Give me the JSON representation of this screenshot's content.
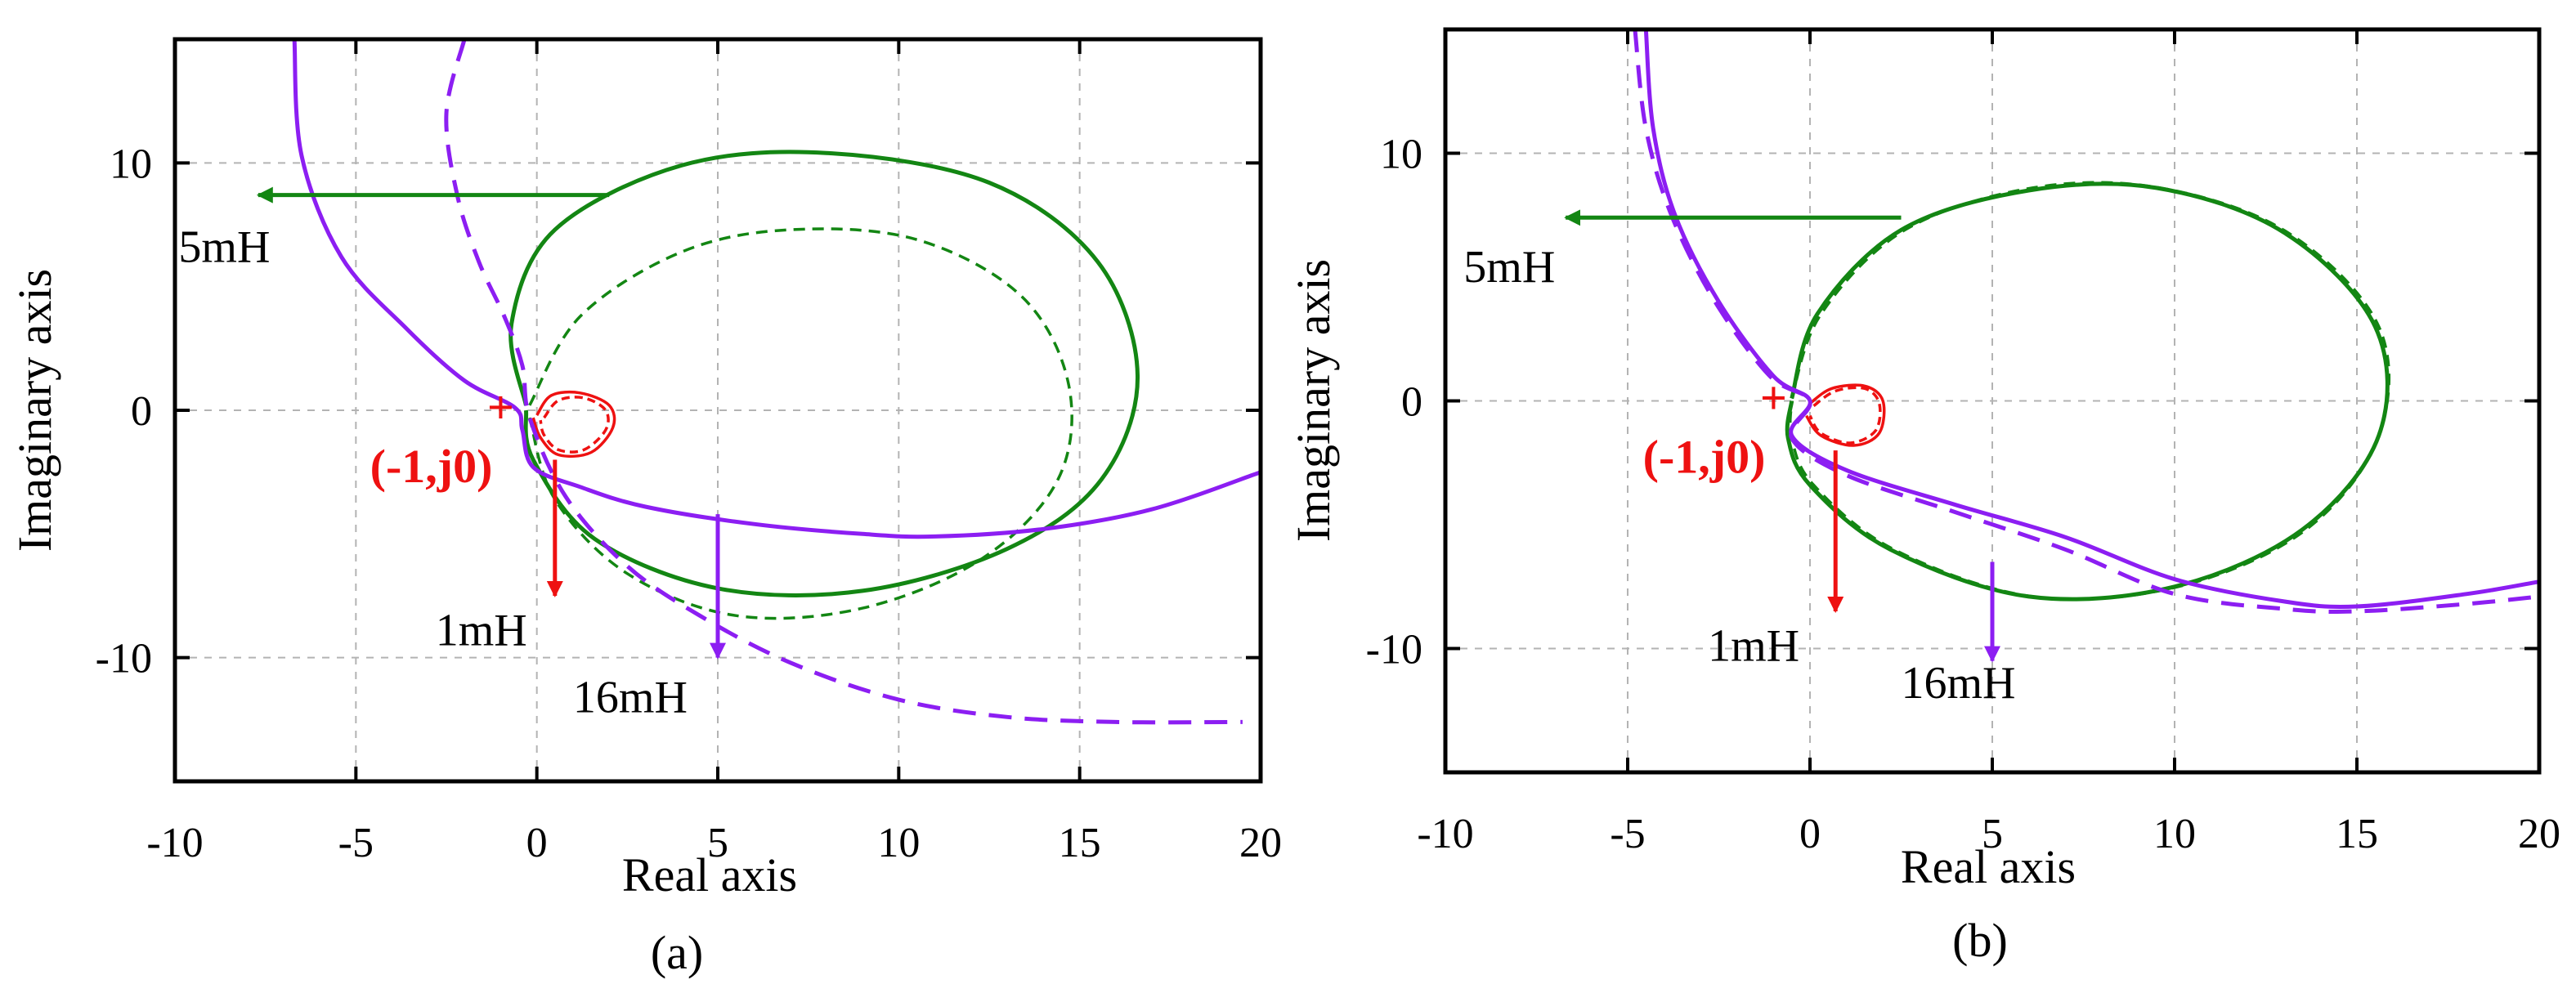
{
  "colors": {
    "green": "#138613",
    "purple": "#8c1ef2",
    "red": "#ee1111",
    "grid": "#b3b3b3",
    "axis": "#000000"
  },
  "chart_data": [
    {
      "type": "line",
      "title": "",
      "caption": "(a)",
      "xlabel": "Real axis",
      "ylabel": "Imaginary axis",
      "xlim": [
        -10,
        20
      ],
      "ylim": [
        -15,
        15
      ],
      "xticks": [
        -10,
        -5,
        0,
        5,
        10,
        15,
        20
      ],
      "yticks": [
        -10,
        0,
        10
      ],
      "xtick_labels": [
        "-10",
        "-5",
        "0",
        "5",
        "10",
        "15",
        "20"
      ],
      "ytick_labels": [
        "-10",
        "0",
        "10"
      ],
      "grid": true,
      "critical_point": {
        "x": -1,
        "y": 0,
        "marker": "+",
        "label": "(-1,j0)"
      },
      "series": [
        {
          "name": "1mH solid",
          "color": "red",
          "style": "solid",
          "points": [
            [
              0,
              -0.2
            ],
            [
              0.4,
              0.6
            ],
            [
              1.2,
              0.7
            ],
            [
              2,
              0.2
            ],
            [
              2.1,
              -0.7
            ],
            [
              1.5,
              -1.7
            ],
            [
              0.6,
              -1.8
            ],
            [
              0.1,
              -1.1
            ],
            [
              -0.1,
              -0.3
            ]
          ]
        },
        {
          "name": "1mH dashed",
          "color": "red",
          "style": "dashed",
          "points": [
            [
              0.2,
              -0.3
            ],
            [
              0.6,
              0.4
            ],
            [
              1.3,
              0.5
            ],
            [
              1.9,
              0
            ],
            [
              1.9,
              -0.8
            ],
            [
              1.3,
              -1.6
            ],
            [
              0.6,
              -1.6
            ],
            [
              0.2,
              -1
            ],
            [
              0.1,
              -0.4
            ]
          ]
        },
        {
          "name": "5mH solid",
          "color": "green",
          "style": "solid",
          "points": [
            [
              -0.3,
              0.2
            ],
            [
              -0.7,
              3.5
            ],
            [
              0.5,
              7.3
            ],
            [
              4,
              9.9
            ],
            [
              8,
              10.4
            ],
            [
              12.5,
              9.2
            ],
            [
              15.5,
              6
            ],
            [
              16.6,
              1.4
            ],
            [
              15.6,
              -2.8
            ],
            [
              13,
              -5.6
            ],
            [
              9,
              -7.3
            ],
            [
              5,
              -7.2
            ],
            [
              1.6,
              -5.2
            ],
            [
              -0.1,
              -2
            ],
            [
              -0.3,
              0
            ]
          ]
        },
        {
          "name": "5mH dashed",
          "color": "green",
          "style": "dashed",
          "points": [
            [
              -0.2,
              0.2
            ],
            [
              1.2,
              3.8
            ],
            [
              4,
              6.4
            ],
            [
              7,
              7.3
            ],
            [
              10.5,
              6.9
            ],
            [
              13.4,
              4.6
            ],
            [
              14.7,
              1
            ],
            [
              14.4,
              -2.8
            ],
            [
              12.3,
              -6
            ],
            [
              9,
              -8
            ],
            [
              5.5,
              -8.3
            ],
            [
              2.5,
              -6.6
            ],
            [
              0.5,
              -3.6
            ],
            [
              -0.2,
              -0.3
            ]
          ]
        },
        {
          "name": "16mH solid",
          "color": "purple",
          "style": "solid",
          "points": [
            [
              -6.7,
              15
            ],
            [
              -6.5,
              10.3
            ],
            [
              -5.4,
              6.2
            ],
            [
              -3.6,
              3.3
            ],
            [
              -2,
              1.2
            ],
            [
              -0.6,
              0.1
            ],
            [
              -0.4,
              -0.8
            ],
            [
              -0.1,
              -2.3
            ],
            [
              1.2,
              -3.1
            ],
            [
              3,
              -3.9
            ],
            [
              6,
              -4.6
            ],
            [
              9,
              -5
            ],
            [
              11,
              -5.1
            ],
            [
              14,
              -4.8
            ],
            [
              17,
              -4
            ],
            [
              20,
              -2.5
            ]
          ]
        },
        {
          "name": "16mH dashed",
          "color": "purple",
          "style": "dashed",
          "points": [
            [
              -2,
              15
            ],
            [
              -2.5,
              12
            ],
            [
              -2.2,
              8.7
            ],
            [
              -1.6,
              6
            ],
            [
              -0.9,
              3.8
            ],
            [
              -0.4,
              1.8
            ],
            [
              -0.2,
              -0.3
            ],
            [
              0.8,
              -3.5
            ],
            [
              2.5,
              -6.3
            ],
            [
              4.5,
              -8.3
            ],
            [
              7,
              -10.2
            ],
            [
              10,
              -11.7
            ],
            [
              13,
              -12.4
            ],
            [
              16,
              -12.6
            ],
            [
              19.5,
              -12.6
            ]
          ]
        }
      ],
      "annotations": [
        {
          "text": "5mH",
          "color": "green",
          "arrow": {
            "from": [
              2,
              8.7
            ],
            "to": [
              -7.7,
              8.7
            ]
          },
          "label_at": [
            -9.9,
            6
          ]
        },
        {
          "text": "1mH",
          "color": "red",
          "arrow": {
            "from": [
              0.5,
              -2
            ],
            "to": [
              0.5,
              -7.5
            ]
          },
          "label_at": [
            -2.8,
            -9.5
          ]
        },
        {
          "text": "16mH",
          "color": "purple",
          "arrow": {
            "from": [
              5,
              -4.2
            ],
            "to": [
              5,
              -10
            ]
          },
          "label_at": [
            1,
            -12.2
          ]
        }
      ]
    },
    {
      "type": "line",
      "title": "",
      "caption": "(b)",
      "xlabel": "Real axis",
      "ylabel": "Imaginary axis",
      "xlim": [
        -10,
        20
      ],
      "ylim": [
        -15,
        15
      ],
      "xticks": [
        -10,
        -5,
        0,
        5,
        10,
        15,
        20
      ],
      "yticks": [
        -10,
        0,
        10
      ],
      "xtick_labels": [
        "-10",
        "-5",
        "0",
        "5",
        "10",
        "15",
        "20"
      ],
      "ytick_labels": [
        "-10",
        "0",
        "10"
      ],
      "grid": true,
      "critical_point": {
        "x": -1,
        "y": 0,
        "marker": "+",
        "label": "(-1,j0)"
      },
      "series": [
        {
          "name": "1mH solid",
          "color": "red",
          "style": "solid",
          "points": [
            [
              0,
              -0.1
            ],
            [
              0.6,
              0.5
            ],
            [
              1.5,
              0.6
            ],
            [
              2,
              0
            ],
            [
              1.9,
              -1.3
            ],
            [
              1.2,
              -1.8
            ],
            [
              0.3,
              -1.4
            ],
            [
              -0.1,
              -0.6
            ]
          ]
        },
        {
          "name": "1mH dashed",
          "color": "red",
          "style": "dashed",
          "points": [
            [
              0.1,
              -0.2
            ],
            [
              0.7,
              0.4
            ],
            [
              1.5,
              0.5
            ],
            [
              1.9,
              -0.1
            ],
            [
              1.8,
              -1.2
            ],
            [
              1.1,
              -1.7
            ],
            [
              0.3,
              -1.3
            ],
            [
              0,
              -0.6
            ]
          ]
        },
        {
          "name": "5mH solid",
          "color": "green",
          "style": "solid",
          "points": [
            [
              -0.5,
              0.1
            ],
            [
              0.2,
              3.5
            ],
            [
              2.5,
              6.9
            ],
            [
              6,
              8.5
            ],
            [
              9.5,
              8.6
            ],
            [
              13,
              6.8
            ],
            [
              15.5,
              3
            ],
            [
              15.6,
              -1.4
            ],
            [
              13.5,
              -5.2
            ],
            [
              10,
              -7.5
            ],
            [
              6,
              -7.9
            ],
            [
              2.2,
              -6
            ],
            [
              0,
              -3.4
            ],
            [
              -0.6,
              -1.5
            ],
            [
              -0.5,
              0
            ]
          ]
        },
        {
          "name": "5mH dashed",
          "color": "green",
          "style": "dashed",
          "points": [
            [
              -0.5,
              0.1
            ],
            [
              0.3,
              3.5
            ],
            [
              2.6,
              6.9
            ],
            [
              6.1,
              8.6
            ],
            [
              9.6,
              8.6
            ],
            [
              13.1,
              6.8
            ],
            [
              15.6,
              3
            ],
            [
              15.6,
              -1.4
            ],
            [
              13.6,
              -5.2
            ],
            [
              10.1,
              -7.5
            ],
            [
              6.1,
              -7.9
            ],
            [
              2.3,
              -6
            ],
            [
              0.1,
              -3.4
            ],
            [
              -0.5,
              -1.5
            ],
            [
              -0.5,
              0
            ]
          ]
        },
        {
          "name": "16mH solid",
          "color": "purple",
          "style": "solid",
          "points": [
            [
              -4.5,
              15
            ],
            [
              -4.3,
              11
            ],
            [
              -3.7,
              7.5
            ],
            [
              -2.5,
              4
            ],
            [
              -1,
              1
            ],
            [
              0,
              0
            ],
            [
              -0.5,
              -1.4
            ],
            [
              1,
              -2.8
            ],
            [
              4,
              -4.2
            ],
            [
              7,
              -5.5
            ],
            [
              10,
              -7.2
            ],
            [
              13,
              -8.1
            ],
            [
              15,
              -8.3
            ],
            [
              18,
              -7.8
            ],
            [
              20,
              -7.3
            ]
          ]
        },
        {
          "name": "16mH dashed",
          "color": "purple",
          "style": "dashed",
          "points": [
            [
              -4.8,
              15
            ],
            [
              -4.5,
              11
            ],
            [
              -3.8,
              7.5
            ],
            [
              -2.6,
              4
            ],
            [
              -1.1,
              1
            ],
            [
              0,
              0
            ],
            [
              -0.5,
              -1.5
            ],
            [
              1,
              -3
            ],
            [
              4,
              -4.5
            ],
            [
              7,
              -6
            ],
            [
              10,
              -7.8
            ],
            [
              13,
              -8.4
            ],
            [
              15,
              -8.5
            ],
            [
              18,
              -8.2
            ],
            [
              20,
              -7.9
            ]
          ]
        }
      ],
      "annotations": [
        {
          "text": "5mH",
          "color": "green",
          "arrow": {
            "from": [
              2.5,
              7.4
            ],
            "to": [
              -6.7,
              7.4
            ]
          },
          "label_at": [
            -9.5,
            4.8
          ]
        },
        {
          "text": "1mH",
          "color": "red",
          "arrow": {
            "from": [
              0.7,
              -2
            ],
            "to": [
              0.7,
              -8.5
            ]
          },
          "label_at": [
            -2.8,
            -10.5
          ]
        },
        {
          "text": "16mH",
          "color": "purple",
          "arrow": {
            "from": [
              5,
              -6.5
            ],
            "to": [
              5,
              -10.5
            ]
          },
          "label_at": [
            2.5,
            -12
          ]
        }
      ]
    }
  ]
}
